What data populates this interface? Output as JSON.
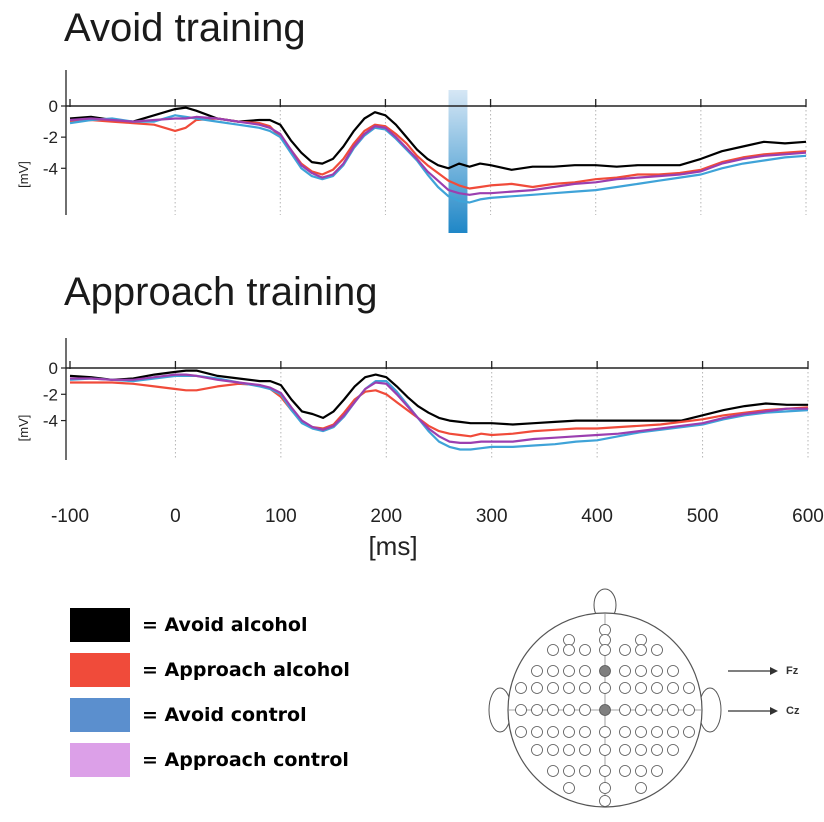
{
  "chart_data": [
    {
      "type": "line",
      "title": "Avoid training",
      "ylabel": "[mV]",
      "x_ticks": [
        -100,
        0,
        100,
        200,
        300,
        400,
        500,
        600
      ],
      "y_ticks": [
        0,
        -2,
        -4
      ],
      "y_tick_labels": [
        "0",
        "-2",
        "-4"
      ],
      "xlim": [
        -100,
        600
      ],
      "ylim": [
        -7,
        0
      ],
      "highlight_window_ms": [
        260,
        278
      ],
      "x": [
        -100,
        -80,
        -60,
        -40,
        -20,
        0,
        10,
        20,
        40,
        60,
        80,
        90,
        100,
        110,
        120,
        130,
        140,
        150,
        160,
        170,
        180,
        190,
        200,
        210,
        220,
        230,
        240,
        250,
        260,
        270,
        280,
        290,
        300,
        320,
        340,
        360,
        380,
        400,
        420,
        440,
        460,
        480,
        500,
        520,
        540,
        560,
        580,
        600
      ],
      "series": [
        {
          "name": "Avoid alcohol",
          "color": "#000000",
          "values": [
            -0.8,
            -0.7,
            -0.9,
            -1.0,
            -0.6,
            -0.2,
            -0.1,
            -0.3,
            -0.8,
            -1.0,
            -0.9,
            -0.9,
            -1.2,
            -2.2,
            -3.0,
            -3.6,
            -3.7,
            -3.4,
            -2.6,
            -1.6,
            -0.8,
            -0.4,
            -0.6,
            -1.2,
            -2.0,
            -2.8,
            -3.4,
            -3.8,
            -4.0,
            -3.7,
            -3.9,
            -3.7,
            -3.8,
            -4.1,
            -3.9,
            -3.9,
            -3.8,
            -3.8,
            -3.9,
            -3.8,
            -3.8,
            -3.8,
            -3.4,
            -2.9,
            -2.6,
            -2.3,
            -2.4,
            -2.3
          ]
        },
        {
          "name": "Approach alcohol",
          "color": "#f04b3a",
          "values": [
            -1.0,
            -0.9,
            -1.0,
            -1.1,
            -1.2,
            -1.6,
            -1.4,
            -0.9,
            -0.8,
            -1.0,
            -1.1,
            -1.3,
            -2.0,
            -2.8,
            -3.7,
            -4.2,
            -4.4,
            -4.1,
            -3.4,
            -2.4,
            -1.6,
            -1.2,
            -1.3,
            -1.8,
            -2.4,
            -3.2,
            -3.8,
            -4.3,
            -4.8,
            -5.1,
            -5.3,
            -5.2,
            -5.1,
            -5.0,
            -5.2,
            -5.0,
            -4.9,
            -4.7,
            -4.6,
            -4.4,
            -4.4,
            -4.3,
            -4.1,
            -3.6,
            -3.3,
            -3.1,
            -3.0,
            -2.9
          ]
        },
        {
          "name": "Avoid control",
          "color": "#3fa3d8",
          "values": [
            -1.1,
            -0.9,
            -0.8,
            -1.0,
            -1.0,
            -0.6,
            -0.7,
            -0.8,
            -1.0,
            -1.2,
            -1.4,
            -1.6,
            -2.0,
            -3.0,
            -4.0,
            -4.5,
            -4.7,
            -4.5,
            -3.8,
            -2.7,
            -1.9,
            -1.4,
            -1.5,
            -2.1,
            -2.8,
            -3.5,
            -4.4,
            -5.2,
            -5.8,
            -6.1,
            -6.2,
            -6.0,
            -5.9,
            -5.8,
            -5.7,
            -5.6,
            -5.5,
            -5.4,
            -5.2,
            -5.0,
            -4.8,
            -4.6,
            -4.4,
            -4.0,
            -3.7,
            -3.5,
            -3.3,
            -3.2
          ]
        },
        {
          "name": "Approach control",
          "color": "#9b3fb0",
          "values": [
            -0.9,
            -0.8,
            -0.9,
            -1.0,
            -0.9,
            -0.8,
            -0.8,
            -0.7,
            -0.8,
            -1.0,
            -1.2,
            -1.4,
            -1.8,
            -2.8,
            -3.8,
            -4.3,
            -4.6,
            -4.4,
            -3.7,
            -2.6,
            -1.8,
            -1.3,
            -1.4,
            -2.0,
            -2.7,
            -3.4,
            -4.2,
            -4.8,
            -5.4,
            -5.6,
            -5.7,
            -5.6,
            -5.6,
            -5.5,
            -5.4,
            -5.2,
            -5.0,
            -4.9,
            -4.7,
            -4.6,
            -4.5,
            -4.4,
            -4.2,
            -3.7,
            -3.4,
            -3.2,
            -3.1,
            -3.0
          ]
        }
      ]
    },
    {
      "type": "line",
      "title": "Approach training",
      "ylabel": "[mV]",
      "xlabel": "[ms]",
      "x_ticks": [
        -100,
        0,
        100,
        200,
        300,
        400,
        500,
        600
      ],
      "x_tick_labels": [
        "-100",
        "0",
        "100",
        "200",
        "300",
        "400",
        "500",
        "600"
      ],
      "y_ticks": [
        0,
        -2,
        -4
      ],
      "y_tick_labels": [
        "0",
        "-2",
        "-4"
      ],
      "xlim": [
        -100,
        600
      ],
      "ylim": [
        -7,
        0
      ],
      "x": [
        -100,
        -80,
        -60,
        -40,
        -20,
        0,
        10,
        20,
        40,
        60,
        80,
        90,
        100,
        110,
        120,
        130,
        140,
        150,
        160,
        170,
        180,
        190,
        200,
        210,
        220,
        230,
        240,
        250,
        260,
        270,
        280,
        290,
        300,
        320,
        340,
        360,
        380,
        400,
        420,
        440,
        460,
        480,
        500,
        520,
        540,
        560,
        580,
        600
      ],
      "series": [
        {
          "name": "Avoid alcohol",
          "color": "#000000",
          "values": [
            -0.6,
            -0.7,
            -0.9,
            -0.8,
            -0.5,
            -0.3,
            -0.2,
            -0.2,
            -0.6,
            -0.8,
            -1.0,
            -1.0,
            -1.3,
            -2.4,
            -3.3,
            -3.5,
            -3.8,
            -3.3,
            -2.4,
            -1.4,
            -0.7,
            -0.5,
            -0.7,
            -1.4,
            -2.2,
            -2.9,
            -3.4,
            -3.8,
            -4.0,
            -4.1,
            -4.2,
            -4.2,
            -4.2,
            -4.3,
            -4.2,
            -4.1,
            -4.0,
            -4.0,
            -4.0,
            -4.0,
            -4.0,
            -4.0,
            -3.6,
            -3.2,
            -2.9,
            -2.7,
            -2.8,
            -2.8
          ]
        },
        {
          "name": "Approach alcohol",
          "color": "#f04b3a",
          "values": [
            -1.1,
            -1.1,
            -1.1,
            -1.2,
            -1.4,
            -1.6,
            -1.7,
            -1.7,
            -1.4,
            -1.2,
            -1.3,
            -1.6,
            -2.2,
            -3.2,
            -4.1,
            -4.5,
            -4.6,
            -4.3,
            -3.4,
            -2.4,
            -1.8,
            -1.7,
            -2.0,
            -2.6,
            -3.2,
            -3.8,
            -4.4,
            -4.8,
            -5.0,
            -5.1,
            -5.2,
            -5.0,
            -5.1,
            -5.0,
            -4.8,
            -4.7,
            -4.6,
            -4.6,
            -4.5,
            -4.4,
            -4.3,
            -4.1,
            -3.9,
            -3.6,
            -3.4,
            -3.2,
            -3.1,
            -3.0
          ]
        },
        {
          "name": "Avoid control",
          "color": "#3fa3d8",
          "values": [
            -0.9,
            -0.8,
            -0.9,
            -1.0,
            -0.8,
            -0.6,
            -0.6,
            -0.6,
            -0.8,
            -1.1,
            -1.4,
            -1.6,
            -2.0,
            -3.2,
            -4.2,
            -4.6,
            -4.8,
            -4.5,
            -3.7,
            -2.6,
            -1.6,
            -1.0,
            -1.0,
            -1.8,
            -2.8,
            -3.8,
            -4.8,
            -5.6,
            -6.0,
            -6.2,
            -6.2,
            -6.1,
            -6.0,
            -6.0,
            -5.9,
            -5.8,
            -5.6,
            -5.5,
            -5.2,
            -4.9,
            -4.7,
            -4.5,
            -4.3,
            -3.9,
            -3.6,
            -3.4,
            -3.3,
            -3.2
          ]
        },
        {
          "name": "Approach control",
          "color": "#9b3fb0",
          "values": [
            -0.8,
            -0.8,
            -0.9,
            -0.9,
            -0.7,
            -0.5,
            -0.5,
            -0.6,
            -0.9,
            -1.1,
            -1.3,
            -1.5,
            -1.9,
            -3.0,
            -4.0,
            -4.5,
            -4.7,
            -4.4,
            -3.6,
            -2.6,
            -1.6,
            -1.1,
            -1.2,
            -2.0,
            -2.9,
            -3.8,
            -4.6,
            -5.2,
            -5.6,
            -5.7,
            -5.7,
            -5.6,
            -5.6,
            -5.6,
            -5.4,
            -5.3,
            -5.2,
            -5.1,
            -5.0,
            -4.8,
            -4.6,
            -4.4,
            -4.2,
            -3.8,
            -3.5,
            -3.3,
            -3.1,
            -3.1
          ]
        }
      ]
    }
  ],
  "legend": [
    {
      "label": "= Avoid alcohol",
      "color": "#000000"
    },
    {
      "label": "= Approach alcohol",
      "color": "#f04b3a"
    },
    {
      "label": "= Avoid control",
      "color": "#5b8fce"
    },
    {
      "label": "= Approach control",
      "color": "#dca0e8"
    }
  ],
  "electrode_map": {
    "labels": [
      "Fz",
      "Cz"
    ],
    "highlight_color": "#7f7f7f"
  }
}
